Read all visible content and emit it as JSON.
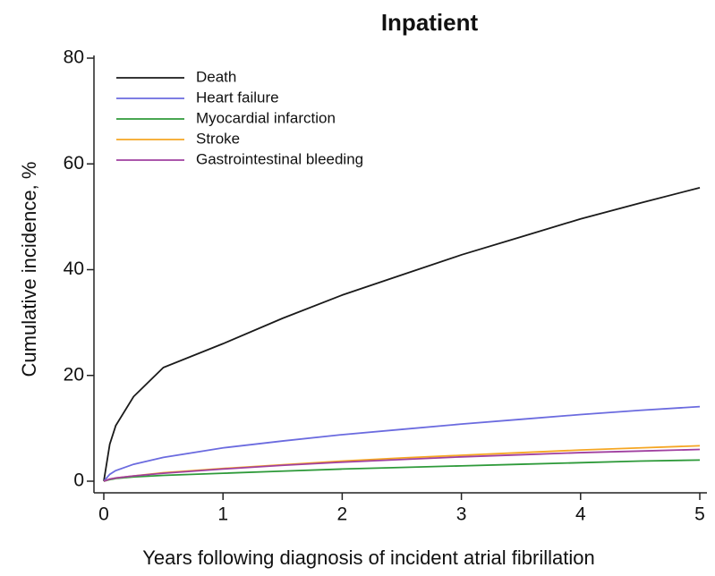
{
  "chart_data": {
    "type": "line",
    "title": "Inpatient",
    "x_label": "Years following diagnosis of incident atrial fibrillation",
    "y_label": "Cumulative incidence, %",
    "x": [
      0,
      0.05,
      0.1,
      0.25,
      0.5,
      1,
      1.5,
      2,
      2.5,
      3,
      3.5,
      4,
      4.5,
      5
    ],
    "series": [
      {
        "name": "Death",
        "color": "#1a1a1a",
        "values": [
          0,
          7,
          10.5,
          16,
          21.5,
          26,
          30.8,
          35.2,
          39,
          42.8,
          46.2,
          49.6,
          52.6,
          55.5
        ]
      },
      {
        "name": "Heart failure",
        "color": "#6b6bdf",
        "values": [
          0,
          1.3,
          2,
          3.2,
          4.5,
          6.3,
          7.6,
          8.8,
          9.8,
          10.8,
          11.7,
          12.6,
          13.4,
          14.1
        ]
      },
      {
        "name": "Myocardial infarction",
        "color": "#2e9a3a",
        "values": [
          0,
          0.3,
          0.5,
          0.8,
          1.1,
          1.5,
          1.9,
          2.3,
          2.6,
          2.9,
          3.2,
          3.5,
          3.8,
          4.0
        ]
      },
      {
        "name": "Stroke",
        "color": "#f5a623",
        "values": [
          0,
          0.4,
          0.6,
          1.0,
          1.6,
          2.4,
          3.1,
          3.8,
          4.4,
          4.9,
          5.4,
          5.9,
          6.3,
          6.7
        ]
      },
      {
        "name": "Gastrointestinal bleeding",
        "color": "#a040a0",
        "values": [
          0,
          0.4,
          0.6,
          1.0,
          1.5,
          2.3,
          3.0,
          3.6,
          4.1,
          4.6,
          5.0,
          5.4,
          5.7,
          6.0
        ]
      }
    ],
    "xlim": [
      0,
      5
    ],
    "xticks": [
      0,
      1,
      2,
      3,
      4,
      5
    ],
    "ylim": [
      0,
      80
    ],
    "yticks": [
      0,
      20,
      40,
      60,
      80
    ],
    "legend": "upper left",
    "grid": false
  }
}
